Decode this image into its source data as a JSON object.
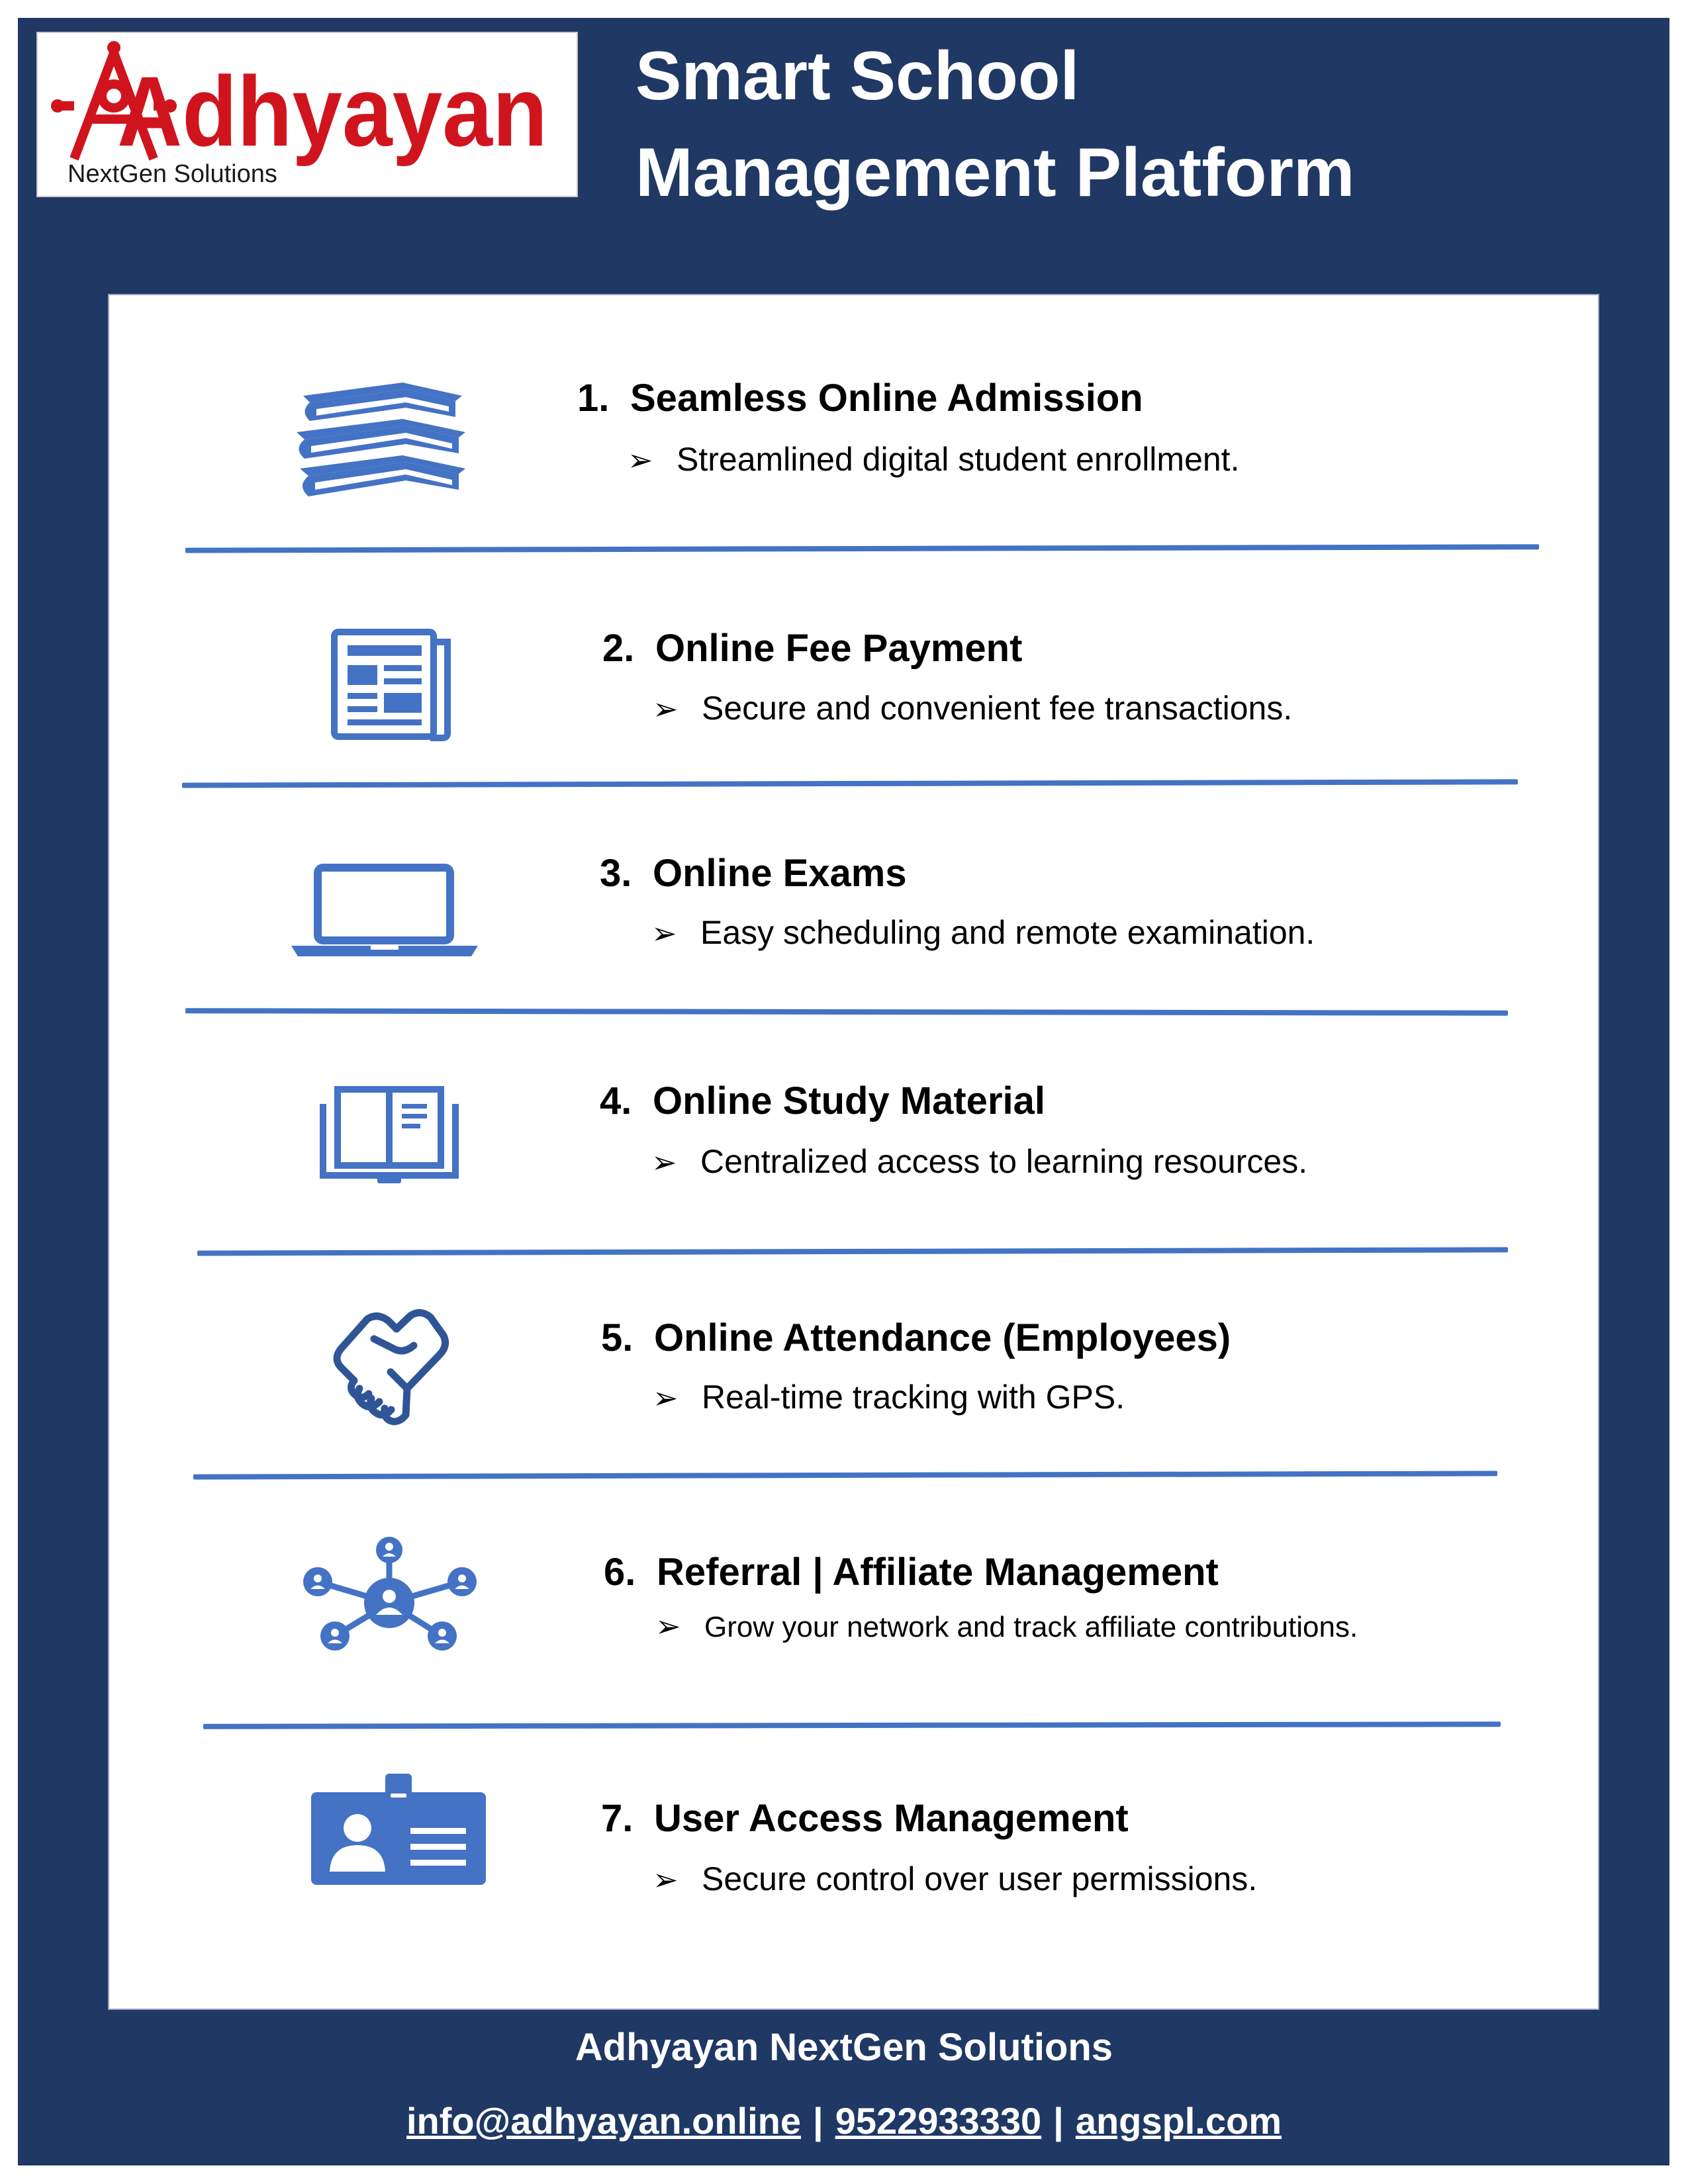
{
  "brand": {
    "logo_text": "Adhyayan",
    "logo_tagline": "NextGen Solutions",
    "logo_color": "#d0141e"
  },
  "header": {
    "title_line1": "Smart School",
    "title_line2": "Management Platform"
  },
  "colors": {
    "background": "#1f3864",
    "accent": "#4472c4"
  },
  "features": [
    {
      "number": "1.",
      "title": "Seamless Online Admission",
      "bullet": "➢",
      "description": "Streamlined digital student enrollment.",
      "icon": "books-icon"
    },
    {
      "number": "2.",
      "title": "Online Fee Payment",
      "bullet": "➢",
      "description": "Secure and convenient fee transactions.",
      "icon": "newspaper-icon"
    },
    {
      "number": "3.",
      "title": "Online Exams",
      "bullet": "➢",
      "description": "Easy scheduling and remote examination.",
      "icon": "laptop-icon"
    },
    {
      "number": "4.",
      "title": "Online Study Material",
      "bullet": "➢",
      "description": "Centralized access to learning resources.",
      "icon": "open-book-icon"
    },
    {
      "number": "5.",
      "title": "Online Attendance (Employees)",
      "bullet": "➢",
      "description": "Real-time tracking with GPS.",
      "icon": "handshake-icon"
    },
    {
      "number": "6.",
      "title": "Referral | Affiliate Management",
      "bullet": "➢",
      "description": "Grow your network and track affiliate contributions.",
      "icon": "network-icon"
    },
    {
      "number": "7.",
      "title": "User Access Management",
      "bullet": "➢",
      "description": "Secure control over user permissions.",
      "icon": "id-badge-icon"
    }
  ],
  "footer": {
    "company": "Adhyayan NextGen Solutions",
    "email": "info@adhyayan.online",
    "phone": "9522933330",
    "website": "angspl.com",
    "separator": "|"
  }
}
